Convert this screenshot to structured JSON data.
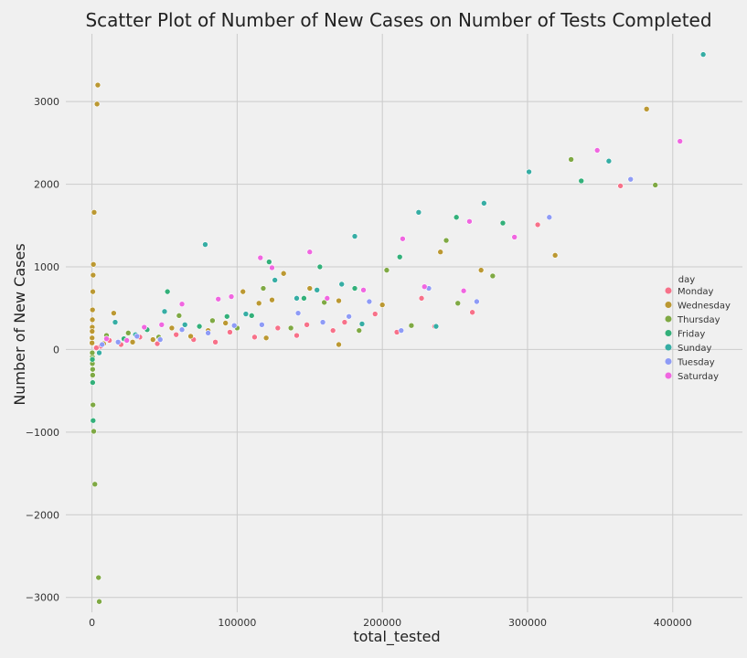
{
  "chart_data": {
    "type": "scatter",
    "title": "Scatter Plot of Number of New Cases on Number of Tests Completed",
    "xlabel": "total_tested",
    "ylabel": "Number of New Cases",
    "xlim": [
      -18000,
      448000
    ],
    "ylim": [
      -3180,
      3820
    ],
    "x_ticks": [
      0,
      100000,
      200000,
      300000,
      400000
    ],
    "x_tick_labels": [
      "0",
      "100000",
      "200000",
      "300000",
      "400000"
    ],
    "y_ticks": [
      -3000,
      -2000,
      -1000,
      0,
      1000,
      2000,
      3000
    ],
    "y_tick_labels": [
      "−3000",
      "−2000",
      "−1000",
      "0",
      "1000",
      "2000",
      "3000"
    ],
    "grid": true,
    "legend": {
      "title": "day",
      "placement": "right"
    },
    "series": [
      {
        "name": "Monday",
        "color": "#f77189",
        "points": [
          [
            364000,
            1980
          ],
          [
            307000,
            1510
          ],
          [
            262000,
            450
          ],
          [
            236000,
            280
          ],
          [
            227000,
            620
          ],
          [
            210000,
            210
          ],
          [
            195000,
            430
          ],
          [
            174000,
            330
          ],
          [
            166000,
            230
          ],
          [
            148000,
            300
          ],
          [
            141000,
            170
          ],
          [
            128000,
            260
          ],
          [
            112000,
            150
          ],
          [
            95000,
            210
          ],
          [
            85000,
            90
          ],
          [
            70000,
            120
          ],
          [
            58000,
            180
          ],
          [
            45000,
            70
          ],
          [
            33000,
            150
          ],
          [
            20000,
            60
          ],
          [
            12000,
            110
          ],
          [
            6000,
            40
          ],
          [
            3000,
            20
          ]
        ]
      },
      {
        "name": "Wednesday",
        "color": "#bb9832",
        "points": [
          [
            4000,
            3200
          ],
          [
            3500,
            2970
          ],
          [
            1500,
            1660
          ],
          [
            1000,
            1030
          ],
          [
            800,
            900
          ],
          [
            600,
            700
          ],
          [
            400,
            480
          ],
          [
            300,
            360
          ],
          [
            200,
            270
          ],
          [
            150,
            220
          ],
          [
            100,
            140
          ],
          [
            50,
            80
          ],
          [
            382000,
            2910
          ],
          [
            319000,
            1140
          ],
          [
            240000,
            1180
          ],
          [
            268000,
            960
          ],
          [
            200000,
            540
          ],
          [
            170000,
            590
          ],
          [
            150000,
            740
          ],
          [
            132000,
            920
          ],
          [
            124000,
            600
          ],
          [
            115000,
            560
          ],
          [
            104000,
            700
          ],
          [
            92000,
            320
          ],
          [
            80000,
            230
          ],
          [
            68000,
            160
          ],
          [
            55000,
            260
          ],
          [
            42000,
            120
          ],
          [
            28000,
            90
          ],
          [
            15000,
            440
          ],
          [
            8000,
            70
          ],
          [
            170000,
            60
          ],
          [
            120000,
            140
          ]
        ]
      },
      {
        "name": "Thursday",
        "color": "#7fa944",
        "points": [
          [
            330000,
            2300
          ],
          [
            388000,
            1990
          ],
          [
            276000,
            890
          ],
          [
            244000,
            1320
          ],
          [
            203000,
            960
          ],
          [
            252000,
            560
          ],
          [
            220000,
            290
          ],
          [
            184000,
            230
          ],
          [
            160000,
            570
          ],
          [
            137000,
            260
          ],
          [
            118000,
            740
          ],
          [
            100000,
            260
          ],
          [
            83000,
            350
          ],
          [
            60000,
            410
          ],
          [
            46000,
            150
          ],
          [
            25000,
            200
          ],
          [
            10000,
            170
          ],
          [
            500,
            -240
          ],
          [
            500,
            -310
          ],
          [
            300,
            -170
          ],
          [
            700,
            -670
          ],
          [
            1200,
            -990
          ],
          [
            2000,
            -1630
          ],
          [
            4500,
            -2760
          ],
          [
            5000,
            -3050
          ],
          [
            300,
            -90
          ],
          [
            200,
            -40
          ]
        ]
      },
      {
        "name": "Friday",
        "color": "#33b07a",
        "points": [
          [
            337000,
            2040
          ],
          [
            283000,
            1530
          ],
          [
            251000,
            1600
          ],
          [
            212000,
            1120
          ],
          [
            181000,
            740
          ],
          [
            157000,
            1000
          ],
          [
            146000,
            620
          ],
          [
            122000,
            1060
          ],
          [
            110000,
            410
          ],
          [
            93000,
            400
          ],
          [
            74000,
            280
          ],
          [
            52000,
            700
          ],
          [
            38000,
            240
          ],
          [
            22000,
            130
          ],
          [
            500,
            -400
          ],
          [
            800,
            -860
          ],
          [
            300,
            -120
          ]
        ]
      },
      {
        "name": "Sunday",
        "color": "#36ada4",
        "points": [
          [
            421000,
            3570
          ],
          [
            356000,
            2280
          ],
          [
            301000,
            2150
          ],
          [
            270000,
            1770
          ],
          [
            225000,
            1660
          ],
          [
            181000,
            1370
          ],
          [
            172000,
            790
          ],
          [
            155000,
            720
          ],
          [
            141000,
            620
          ],
          [
            126000,
            840
          ],
          [
            106000,
            430
          ],
          [
            78000,
            1270
          ],
          [
            64000,
            300
          ],
          [
            50000,
            460
          ],
          [
            30000,
            180
          ],
          [
            16000,
            330
          ],
          [
            5000,
            -40
          ],
          [
            237000,
            280
          ],
          [
            186000,
            310
          ]
        ]
      },
      {
        "name": "Tuesday",
        "color": "#8e9bf6",
        "points": [
          [
            371000,
            2060
          ],
          [
            315000,
            1600
          ],
          [
            265000,
            580
          ],
          [
            232000,
            740
          ],
          [
            213000,
            230
          ],
          [
            191000,
            580
          ],
          [
            177000,
            400
          ],
          [
            159000,
            330
          ],
          [
            142000,
            440
          ],
          [
            117000,
            300
          ],
          [
            98000,
            290
          ],
          [
            80000,
            200
          ],
          [
            62000,
            240
          ],
          [
            47000,
            120
          ],
          [
            31000,
            160
          ],
          [
            18000,
            90
          ],
          [
            7000,
            60
          ]
        ]
      },
      {
        "name": "Saturday",
        "color": "#f066e0",
        "points": [
          [
            405000,
            2520
          ],
          [
            348000,
            2410
          ],
          [
            291000,
            1360
          ],
          [
            260000,
            1550
          ],
          [
            214000,
            1340
          ],
          [
            187000,
            720
          ],
          [
            162000,
            620
          ],
          [
            150000,
            1180
          ],
          [
            124000,
            990
          ],
          [
            116000,
            1110
          ],
          [
            96000,
            640
          ],
          [
            87000,
            610
          ],
          [
            62000,
            550
          ],
          [
            48000,
            300
          ],
          [
            36000,
            270
          ],
          [
            24000,
            110
          ],
          [
            10000,
            130
          ],
          [
            229000,
            760
          ],
          [
            256000,
            710
          ]
        ]
      }
    ]
  }
}
